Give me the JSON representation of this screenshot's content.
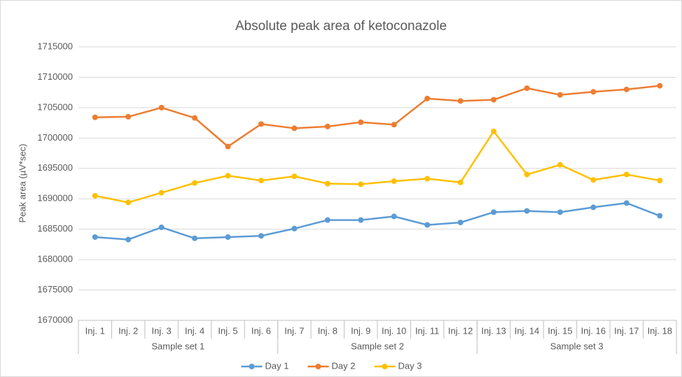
{
  "chart_data": {
    "type": "line",
    "title": "Absolute peak area of ketoconazole",
    "y_label": "Peak area (µV*sec)",
    "categories": [
      "Inj. 1",
      "Inj. 2",
      "Inj. 3",
      "Inj. 4",
      "Inj. 5",
      "Inj. 6",
      "Inj. 7",
      "Inj. 8",
      "Inj. 9",
      "Inj. 10",
      "Inj. 11",
      "Inj. 12",
      "Inj. 13",
      "Inj. 14",
      "Inj. 15",
      "Inj. 16",
      "Inj. 17",
      "Inj. 18"
    ],
    "category_groups": [
      "Sample set 1",
      "Sample set 2",
      "Sample set 3"
    ],
    "series": [
      {
        "name": "Day 1",
        "color": "#5b9bd5",
        "values": [
          1683700,
          1683300,
          1685300,
          1683500,
          1683700,
          1683900,
          1685100,
          1686500,
          1686500,
          1687100,
          1685700,
          1686100,
          1687800,
          1688000,
          1687800,
          1688600,
          1689300,
          1687200
        ]
      },
      {
        "name": "Day 2",
        "color": "#ed7d31",
        "values": [
          1703400,
          1703500,
          1705000,
          1703300,
          1698600,
          1702300,
          1701600,
          1701900,
          1702600,
          1702200,
          1706500,
          1706100,
          1706300,
          1708200,
          1707100,
          1707600,
          1708000,
          1708600
        ]
      },
      {
        "name": "Day 3",
        "color": "#ffc000",
        "values": [
          1690500,
          1689400,
          1691000,
          1692600,
          1693800,
          1693000,
          1693700,
          1692500,
          1692400,
          1692900,
          1693300,
          1692700,
          1701100,
          1694000,
          1695600,
          1693100,
          1694000,
          1693000
        ]
      }
    ],
    "ylim": [
      1670000,
      1715000
    ],
    "yticks": [
      1670000,
      1675000,
      1680000,
      1685000,
      1690000,
      1695000,
      1700000,
      1705000,
      1710000,
      1715000
    ],
    "grid": true,
    "legend": "bottom"
  }
}
